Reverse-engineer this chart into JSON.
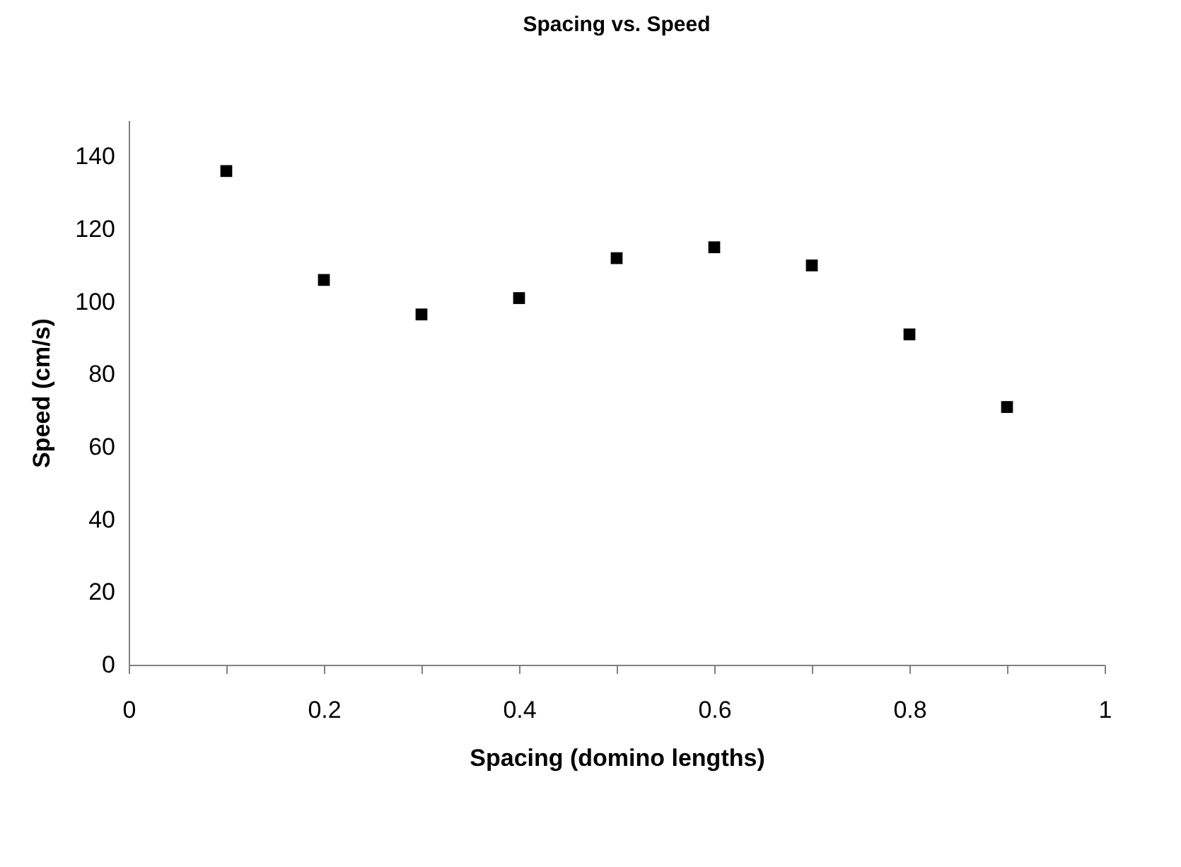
{
  "chart_data": {
    "type": "scatter",
    "title": "Spacing vs. Speed",
    "xlabel": "Spacing  (domino  lengths)",
    "ylabel": "Speed   (cm/s)",
    "x": [
      0.1,
      0.2,
      0.3,
      0.4,
      0.5,
      0.6,
      0.7,
      0.8,
      0.9
    ],
    "series": [
      {
        "color": "#000000",
        "values": [
          136,
          106,
          96.5,
          101,
          112,
          115,
          110,
          91,
          71
        ]
      }
    ],
    "xlim": [
      0,
      1
    ],
    "xticks": [
      0,
      {
        "value": 0.1,
        "label": null
      },
      0.2,
      {
        "value": 0.3,
        "label": null
      },
      0.4,
      {
        "value": 0.5,
        "label": null
      },
      0.6,
      {
        "value": 0.7,
        "label": null
      },
      0.8,
      {
        "value": 0.9,
        "label": null
      },
      1
    ],
    "ylim": [
      0,
      150
    ],
    "yticks": [
      0,
      20,
      40,
      60,
      80,
      100,
      120,
      140
    ],
    "grid": false,
    "legend": false,
    "marker": "square"
  }
}
